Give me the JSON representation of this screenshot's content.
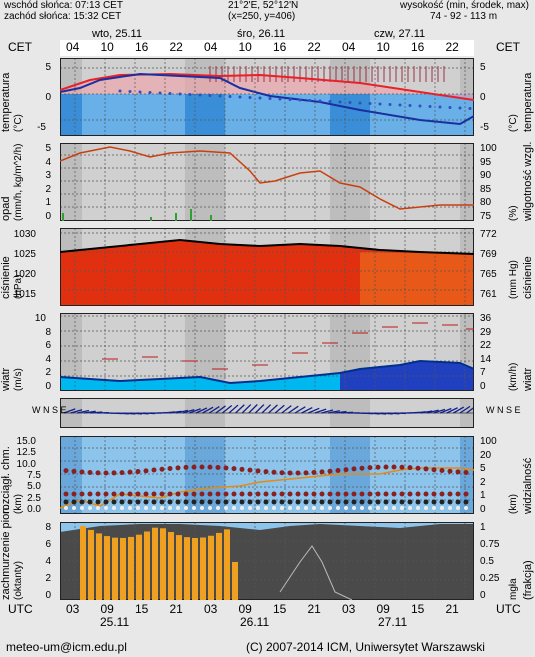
{
  "header": {
    "sunrise": "wschód słońca: 07:13 CET",
    "sunset": "zachód słońca: 15:32 CET",
    "coords": "21°2'E, 52°12'N",
    "grid": "(x=250, y=406)",
    "elevation_label": "wysokość (min, środek, max)",
    "elevation_values": "74 - 92 - 113 m"
  },
  "timeline_top": {
    "tz_left": "CET",
    "tz_right": "CET",
    "days": [
      "wto, 25.11",
      "śro, 26.11",
      "czw, 27.11"
    ],
    "hours": [
      "04",
      "10",
      "16",
      "22",
      "04",
      "10",
      "16",
      "22",
      "04",
      "10",
      "16",
      "22"
    ]
  },
  "timeline_bottom": {
    "tz_left": "UTC",
    "tz_right": "UTC",
    "hours": [
      "03",
      "09",
      "15",
      "21",
      "03",
      "09",
      "15",
      "21",
      "03",
      "09",
      "15",
      "21"
    ],
    "dates": [
      "25.11",
      "26.11",
      "27.11"
    ]
  },
  "panels": {
    "temperature": {
      "left_label": "temperatura",
      "left_unit": "(°C)",
      "right_label": "temperatura",
      "right_unit": "(°C)",
      "ticks_left": [
        "5",
        "0",
        "-5"
      ],
      "ticks_right": [
        "5",
        "0",
        "-5"
      ]
    },
    "precip": {
      "left_label": "opad",
      "left_unit": "(mm/h, kg/m^2/h)",
      "right_label": "wilgotność wzgl.",
      "right_unit": "(%)",
      "ticks_left": [
        "5",
        "4",
        "3",
        "2",
        "1",
        "0"
      ],
      "ticks_right": [
        "100",
        "95",
        "90",
        "85",
        "80",
        "75"
      ]
    },
    "pressure": {
      "left_label": "ciśnienie",
      "left_unit": "(hPa)",
      "right_label": "ciśnienie",
      "right_unit": "(mm Hg)",
      "ticks_left": [
        "1030",
        "1025",
        "1020",
        "1015"
      ],
      "ticks_right": [
        "772",
        "769",
        "765",
        "761"
      ]
    },
    "wind": {
      "left_label": "wiatr",
      "left_unit": "(m/s)",
      "right_label": "wiatr",
      "right_unit": "(km/h)",
      "ticks_left": [
        "10",
        "8",
        "6",
        "4",
        "2",
        "0"
      ],
      "ticks_right": [
        "36",
        "29",
        "22",
        "14",
        "7",
        "0"
      ]
    },
    "direction": {
      "compass_left": "W N S E",
      "compass_right": "W N S E"
    },
    "clouds": {
      "left_label": "rozciągł. chm.",
      "left_unit": "(km)",
      "right_label": "widzialność",
      "right_unit": "(km)",
      "ticks_left": [
        "15.0",
        "12.5",
        "10.0",
        "7.5",
        "5.0",
        "2.5",
        "0.0"
      ],
      "ticks_right": [
        "100",
        "20",
        "5",
        "2",
        "1",
        "0"
      ]
    },
    "cloudcover": {
      "left_label": "zachmurzenie pion.",
      "left_unit": "(oktanty)",
      "right_label": "(frakcja)",
      "right_unit": "mgła",
      "ticks_left": [
        "8",
        "6",
        "4",
        "2",
        "0"
      ],
      "ticks_right": [
        "1",
        "0.75",
        "0.5",
        "0.25",
        "0"
      ]
    }
  },
  "footer": {
    "email": "meteo-um@icm.edu.pl",
    "copyright": "(C) 2007-2014 ICM, Uniwersytet Warszawski"
  },
  "colors": {
    "night_band": "#bdbdbd",
    "grid": "#555555",
    "temp_red": "#e8202a",
    "temp_blue": "#1a2fa0",
    "humidity": "#c84010",
    "pressure_fill": "#e03010",
    "wind_cyan": "#00b8f0",
    "wind_blue": "#2040c0",
    "cloud_sky": "#8cc4ec",
    "cloudcover_bar": "#f0a020",
    "fog_fill": "#4a4a4a"
  }
}
